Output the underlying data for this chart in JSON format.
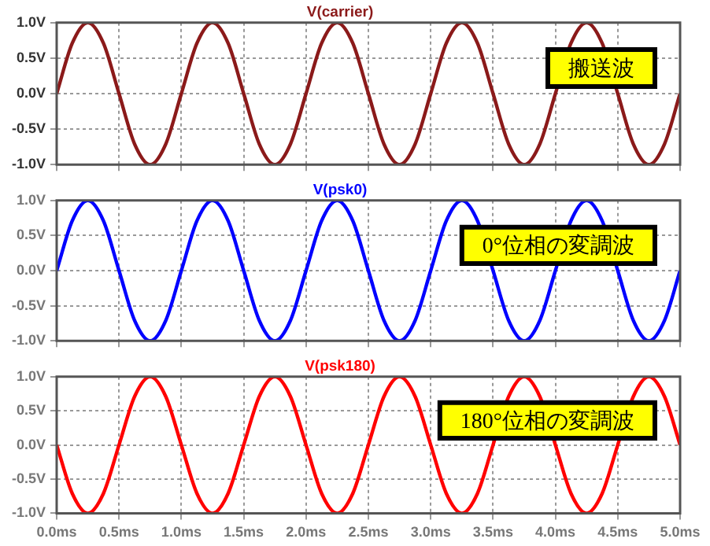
{
  "chart_data": [
    {
      "type": "line",
      "title": "V(carrier)",
      "x": [
        0,
        0.125,
        0.25,
        0.375,
        0.5,
        0.625,
        0.75,
        0.875,
        1,
        1.125,
        1.25,
        1.375,
        1.5,
        1.625,
        1.75,
        1.875,
        2,
        2.125,
        2.25,
        2.375,
        2.5,
        2.625,
        2.75,
        2.875,
        3,
        3.125,
        3.25,
        3.375,
        3.5,
        3.625,
        3.75,
        3.875,
        4,
        4.125,
        4.25,
        4.375,
        4.5,
        4.625,
        4.75,
        4.875,
        5
      ],
      "series": [
        {
          "color": "#8b1a1a",
          "values": [
            0,
            0.71,
            1,
            0.71,
            0,
            -0.71,
            -1,
            -0.71,
            0,
            0.71,
            1,
            0.71,
            0,
            -0.71,
            -1,
            -0.71,
            0,
            0.71,
            1,
            0.71,
            0,
            -0.71,
            -1,
            -0.71,
            0,
            0.71,
            1,
            0.71,
            0,
            -0.71,
            -1,
            -0.71,
            0,
            0.71,
            1,
            0.71,
            0,
            -0.71,
            -1,
            -0.71,
            0
          ]
        }
      ],
      "xlim": [
        0,
        5
      ],
      "xticks": [
        0,
        0.5,
        1,
        1.5,
        2,
        2.5,
        3,
        3.5,
        4,
        4.5,
        5
      ],
      "ylim": [
        -1,
        1
      ],
      "yticks": [
        {
          "value": -1,
          "label": "-1.0V"
        },
        {
          "value": -0.5,
          "label": "-0.5V"
        },
        {
          "value": 0,
          "label": "0.0V"
        },
        {
          "value": 0.5,
          "label": "0.5V"
        },
        {
          "value": 1,
          "label": "1.0V"
        }
      ],
      "tick_labels": "y",
      "grid": true,
      "marker": "none",
      "line_style": "solid",
      "annotations": [
        "搬送波"
      ]
    },
    {
      "type": "line",
      "title": "V(psk0)",
      "x": [
        0,
        0.125,
        0.25,
        0.375,
        0.5,
        0.625,
        0.75,
        0.875,
        1,
        1.125,
        1.25,
        1.375,
        1.5,
        1.625,
        1.75,
        1.875,
        2,
        2.125,
        2.25,
        2.375,
        2.5,
        2.625,
        2.75,
        2.875,
        3,
        3.125,
        3.25,
        3.375,
        3.5,
        3.625,
        3.75,
        3.875,
        4,
        4.125,
        4.25,
        4.375,
        4.5,
        4.625,
        4.75,
        4.875,
        5
      ],
      "series": [
        {
          "color": "#0000ff",
          "values": [
            0,
            0.71,
            1,
            0.71,
            0,
            -0.71,
            -1,
            -0.71,
            0,
            0.71,
            1,
            0.71,
            0,
            -0.71,
            -1,
            -0.71,
            0,
            0.71,
            1,
            0.71,
            0,
            -0.71,
            -1,
            -0.71,
            0,
            0.71,
            1,
            0.71,
            0,
            -0.71,
            -1,
            -0.71,
            0,
            0.71,
            1,
            0.71,
            0,
            -0.71,
            -1,
            -0.71,
            0
          ]
        }
      ],
      "xlim": [
        0,
        5
      ],
      "xticks": [
        0,
        0.5,
        1,
        1.5,
        2,
        2.5,
        3,
        3.5,
        4,
        4.5,
        5
      ],
      "ylim": [
        -1,
        1
      ],
      "yticks": [
        {
          "value": -1,
          "label": "-1.0V"
        },
        {
          "value": -0.5,
          "label": "-0.5V"
        },
        {
          "value": 0,
          "label": "0.0V"
        },
        {
          "value": 0.5,
          "label": "0.5V"
        },
        {
          "value": 1,
          "label": "1.0V"
        }
      ],
      "tick_labels": "y",
      "grid": true,
      "marker": "none",
      "line_style": "solid",
      "annotations": [
        "0°位相の変調波"
      ]
    },
    {
      "type": "line",
      "title": "V(psk180)",
      "x": [
        0,
        0.125,
        0.25,
        0.375,
        0.5,
        0.625,
        0.75,
        0.875,
        1,
        1.125,
        1.25,
        1.375,
        1.5,
        1.625,
        1.75,
        1.875,
        2,
        2.125,
        2.25,
        2.375,
        2.5,
        2.625,
        2.75,
        2.875,
        3,
        3.125,
        3.25,
        3.375,
        3.5,
        3.625,
        3.75,
        3.875,
        4,
        4.125,
        4.25,
        4.375,
        4.5,
        4.625,
        4.75,
        4.875,
        5
      ],
      "series": [
        {
          "color": "#ff0000",
          "values": [
            0,
            -0.71,
            -1,
            -0.71,
            0,
            0.71,
            1,
            0.71,
            0,
            -0.71,
            -1,
            -0.71,
            0,
            0.71,
            1,
            0.71,
            0,
            -0.71,
            -1,
            -0.71,
            0,
            0.71,
            1,
            0.71,
            0,
            -0.71,
            -1,
            -0.71,
            0,
            0.71,
            1,
            0.71,
            0,
            -0.71,
            -1,
            -0.71,
            0,
            0.71,
            1,
            0.71,
            0
          ]
        }
      ],
      "xlim": [
        0,
        5
      ],
      "xticks": [
        {
          "value": 0,
          "label": "0.0ms"
        },
        {
          "value": 0.5,
          "label": "0.5ms"
        },
        {
          "value": 1,
          "label": "1.0ms"
        },
        {
          "value": 1.5,
          "label": "1.5ms"
        },
        {
          "value": 2,
          "label": "2.0ms"
        },
        {
          "value": 2.5,
          "label": "2.5ms"
        },
        {
          "value": 3,
          "label": "3.0ms"
        },
        {
          "value": 3.5,
          "label": "3.5ms"
        },
        {
          "value": 4,
          "label": "4.0ms"
        },
        {
          "value": 4.5,
          "label": "4.5ms"
        },
        {
          "value": 5,
          "label": "5.0ms"
        }
      ],
      "ylim": [
        -1,
        1
      ],
      "yticks": [
        {
          "value": -1,
          "label": "-1.0V"
        },
        {
          "value": -0.5,
          "label": "-0.5V"
        },
        {
          "value": 0,
          "label": "0.0V"
        },
        {
          "value": 0.5,
          "label": "0.5V"
        },
        {
          "value": 1,
          "label": "1.0V"
        }
      ],
      "grid": true,
      "marker": "none",
      "line_style": "solid",
      "annotations": [
        "180°位相の変調波"
      ]
    }
  ]
}
